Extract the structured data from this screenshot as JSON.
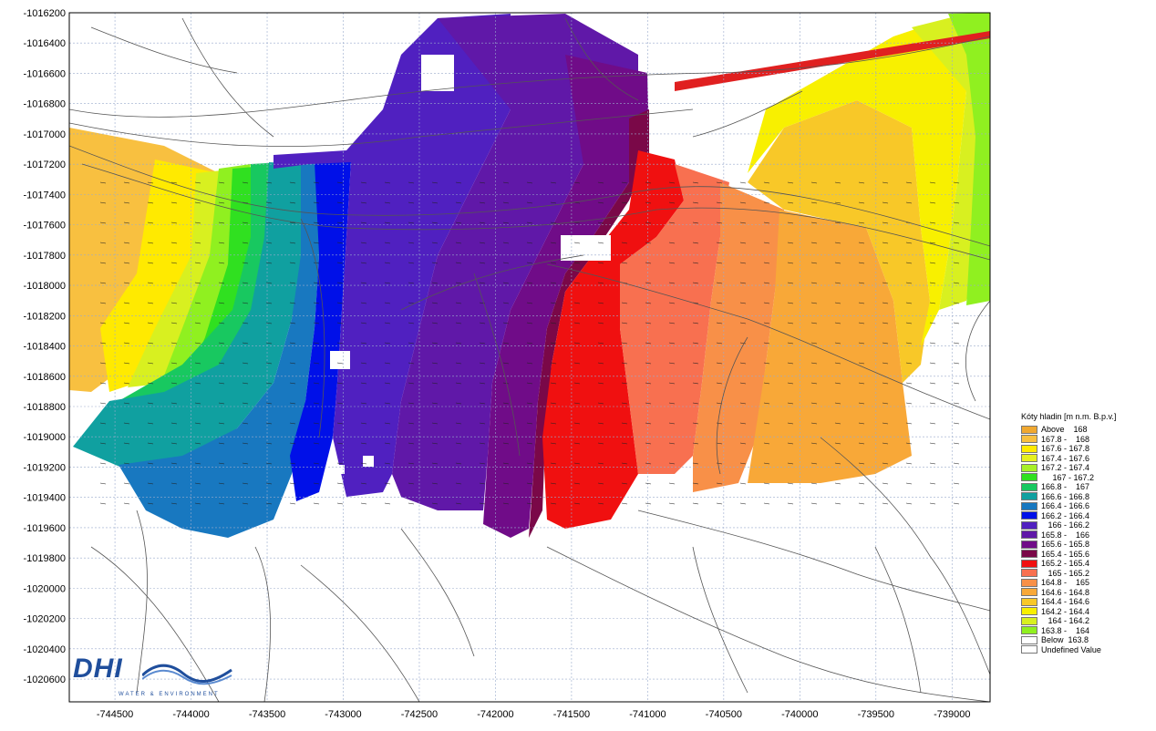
{
  "map": {
    "y_ticks": [
      "-1016200",
      "-1016400",
      "-1016600",
      "-1016800",
      "-1017000",
      "-1017200",
      "-1017400",
      "-1017600",
      "-1017800",
      "-1018000",
      "-1018200",
      "-1018400",
      "-1018600",
      "-1018800",
      "-1019000",
      "-1019200",
      "-1019400",
      "-1019600",
      "-1019800",
      "-1020000",
      "-1020200",
      "-1020400",
      "-1020600"
    ],
    "x_ticks": [
      "-744500",
      "-744000",
      "-743500",
      "-743000",
      "-742500",
      "-742000",
      "-741500",
      "-741000",
      "-740500",
      "-740000",
      "-739500",
      "-739000"
    ],
    "x_range": [
      -744800,
      -738750
    ],
    "y_range": [
      -1020750,
      -1016200
    ]
  },
  "legend": {
    "title": "Kóty hladin  [m n.m. B.p.v.]",
    "items": [
      {
        "label": "Above    168",
        "color": "#f0a830"
      },
      {
        "label": "167.8 -    168",
        "color": "#f8c040"
      },
      {
        "label": "167.6 - 167.8",
        "color": "#ffea00"
      },
      {
        "label": "167.4 - 167.6",
        "color": "#e6f020"
      },
      {
        "label": "167.2 - 167.4",
        "color": "#a8f028"
      },
      {
        "label": "     167 - 167.2",
        "color": "#30e020"
      },
      {
        "label": "166.8 -    167",
        "color": "#18c860"
      },
      {
        "label": "166.6 - 166.8",
        "color": "#10a0a0"
      },
      {
        "label": "166.4 - 166.6",
        "color": "#1878c0"
      },
      {
        "label": "166.2 - 166.4",
        "color": "#0010e8"
      },
      {
        "label": "   166 - 166.2",
        "color": "#5020c0"
      },
      {
        "label": "165.8 -    166",
        "color": "#6018a8"
      },
      {
        "label": "165.6 - 165.8",
        "color": "#700c88"
      },
      {
        "label": "165.4 - 165.6",
        "color": "#7a0848"
      },
      {
        "label": "165.2 - 165.4",
        "color": "#f01010"
      },
      {
        "label": "   165 - 165.2",
        "color": "#f87050"
      },
      {
        "label": "164.8 -    165",
        "color": "#f89048"
      },
      {
        "label": "164.6 - 164.8",
        "color": "#f8a838"
      },
      {
        "label": "164.4 - 164.6",
        "color": "#f8c828"
      },
      {
        "label": "164.2 - 164.4",
        "color": "#f8f000"
      },
      {
        "label": "   164 - 164.2",
        "color": "#d8f020"
      },
      {
        "label": "163.8 -    164",
        "color": "#90f020"
      },
      {
        "label": "Below  163.8",
        "color": "#ffffff"
      },
      {
        "label": "Undefined Value",
        "color": "#ffffff"
      }
    ]
  },
  "logo": {
    "text": "DHI",
    "subtitle": "WATER & ENVIRONMENT"
  }
}
